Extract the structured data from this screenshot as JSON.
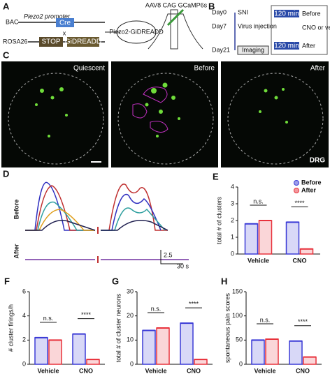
{
  "panel_a": {
    "label": "A",
    "bac": "BAC",
    "promoter": "Piezo2 promoter",
    "cre": "Cre",
    "cross": "x",
    "rosa": "ROSA26",
    "stop": "STOP",
    "gidreadd": "GiDREADD",
    "mouse": "Piezo2-GiDREADD",
    "virus": "AAV8 CAG GCaMP6s"
  },
  "panel_b": {
    "label": "B",
    "days": [
      "Day0",
      "Day7",
      "Day21"
    ],
    "events": [
      "SNI",
      "Virus injection"
    ],
    "imaging": "Imaging",
    "boxes": [
      "120 min",
      "120 min"
    ],
    "stages": [
      "Before",
      "CNO or vehicle",
      "After"
    ]
  },
  "panel_c": {
    "label": "C",
    "titles": [
      "Quiescent",
      "Before",
      "After"
    ],
    "region": "DRG"
  },
  "panel_d": {
    "label": "D",
    "rows": [
      "Before",
      "After"
    ],
    "scale_y": "2.5",
    "scale_x": "30 s"
  },
  "chart_data": [
    {
      "type": "bar",
      "panel": "E",
      "y_label": "total # of clusters",
      "categories": [
        "Vehicle",
        "CNO"
      ],
      "ylim": [
        0,
        4
      ],
      "yticks": [
        0,
        1,
        2,
        3,
        4
      ],
      "legend": "top-right",
      "annotations": [
        "n.s.",
        "****"
      ],
      "series": [
        {
          "name": "Before",
          "color": "#3b3bd6",
          "values": [
            1.8,
            1.9
          ]
        },
        {
          "name": "After",
          "color": "#e8323c",
          "values": [
            2.0,
            0.3
          ]
        }
      ]
    },
    {
      "type": "bar",
      "panel": "F",
      "y_label": "# cluster firings/h",
      "categories": [
        "Vehicle",
        "CNO"
      ],
      "ylim": [
        0,
        6
      ],
      "yticks": [
        0,
        2,
        4,
        6
      ],
      "annotations": [
        "n.s.",
        "****"
      ],
      "series": [
        {
          "color": "#3b3bd6",
          "values": [
            2.2,
            2.5
          ]
        },
        {
          "color": "#e8323c",
          "values": [
            2.0,
            0.4
          ]
        }
      ]
    },
    {
      "type": "bar",
      "panel": "G",
      "y_label": "total # of cluster neurons",
      "categories": [
        "Vehicle",
        "CNO"
      ],
      "ylim": [
        0,
        30
      ],
      "yticks": [
        0,
        10,
        20,
        30
      ],
      "annotations": [
        "n.s.",
        "****"
      ],
      "series": [
        {
          "color": "#3b3bd6",
          "values": [
            14,
            17
          ]
        },
        {
          "color": "#e8323c",
          "values": [
            15,
            2
          ]
        }
      ]
    },
    {
      "type": "bar",
      "panel": "H",
      "y_label": "spontaneous pain scores",
      "categories": [
        "Vehicle",
        "CNO"
      ],
      "ylim": [
        0,
        150
      ],
      "yticks": [
        0,
        50,
        100,
        150
      ],
      "annotations": [
        "n.s.",
        "****"
      ],
      "series": [
        {
          "color": "#3b3bd6",
          "values": [
            50,
            48
          ]
        },
        {
          "color": "#e8323c",
          "values": [
            52,
            15
          ]
        }
      ]
    }
  ]
}
